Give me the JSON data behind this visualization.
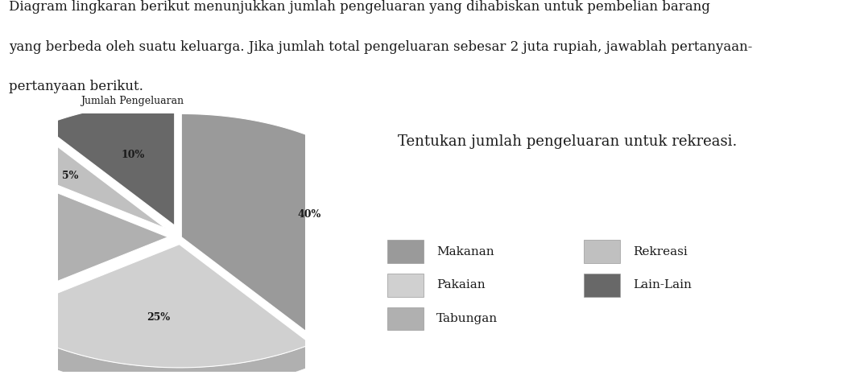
{
  "title": "Jumlah Pengeluaran",
  "question_text": "Tentukan jumlah pengeluaran untuk rekreasi.",
  "para_lines": [
    "Diagram lingkaran berikut menunjukkan jumlah pengeluaran yang dihabiskan untuk pembelian barang",
    "yang berbeda oleh suatu keluarga. Jika jumlah total pengeluaran sebesar 2 juta rupiah, jawablah pertanyaan-",
    "pertanyaan berikut."
  ],
  "slices": [
    {
      "label": "Makanan",
      "pct": 40,
      "color": "#9a9a9a",
      "side_color": "#7a7a7a",
      "pct_label": "40%"
    },
    {
      "label": "Pakaian",
      "pct": 25,
      "color": "#d0d0d0",
      "side_color": "#b0b0b0",
      "pct_label": "25%"
    },
    {
      "label": "Tabungan",
      "pct": 20,
      "color": "#b0b0b0",
      "side_color": "#909090",
      "pct_label": ""
    },
    {
      "label": "Rekreasi",
      "pct": 5,
      "color": "#c0c0c0",
      "side_color": "#a0a0a0",
      "pct_label": "5%"
    },
    {
      "label": "Lain-Lain",
      "pct": 10,
      "color": "#686868",
      "side_color": "#484848",
      "pct_label": "10%"
    }
  ],
  "explode": [
    0.0,
    0.06,
    0.06,
    0.1,
    0.1
  ],
  "startangle": 90,
  "bg_color": "#ffffff",
  "text_color": "#1a1a1a",
  "title_fontsize": 9,
  "pct_fontsize": 9,
  "legend_fontsize": 11,
  "para_fontsize": 12,
  "question_fontsize": 13,
  "pie_depth": 0.18,
  "pie_yscale": 0.55
}
